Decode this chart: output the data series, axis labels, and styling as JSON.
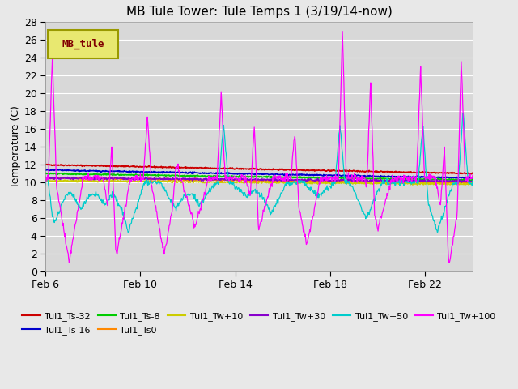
{
  "title": "MB Tule Tower: Tule Temps 1 (3/19/14-now)",
  "ylabel": "Temperature (C)",
  "ylim": [
    0,
    28
  ],
  "yticks": [
    0,
    2,
    4,
    6,
    8,
    10,
    12,
    14,
    16,
    18,
    20,
    22,
    24,
    26,
    28
  ],
  "bg_color": "#e8e8e8",
  "plot_bg_color": "#d8d8d8",
  "legend_box_color": "#e8e870",
  "legend_box_text": "MB_tule",
  "legend_box_text_color": "#800000",
  "series": [
    {
      "label": "Tul1_Ts-32",
      "color": "#cc0000"
    },
    {
      "label": "Tul1_Ts-16",
      "color": "#0000cc"
    },
    {
      "label": "Tul1_Ts-8",
      "color": "#00cc00"
    },
    {
      "label": "Tul1_Ts0",
      "color": "#ff8800"
    },
    {
      "label": "Tul1_Tw+10",
      "color": "#cccc00"
    },
    {
      "label": "Tul1_Tw+30",
      "color": "#8800cc"
    },
    {
      "label": "Tul1_Tw+50",
      "color": "#00cccc"
    },
    {
      "label": "Tul1_Tw+100",
      "color": "#ff00ff"
    }
  ],
  "x_tick_labels": [
    "Feb 6",
    "Feb 10",
    "Feb 14",
    "Feb 18",
    "Feb 22"
  ],
  "x_tick_positions": [
    0,
    4,
    8,
    12,
    16
  ],
  "n_days": 18,
  "pts_per_day": 48
}
